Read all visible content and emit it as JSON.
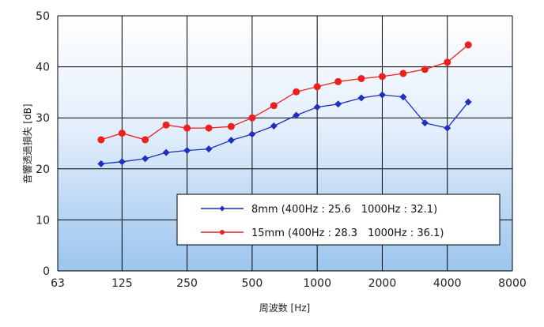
{
  "chart_data": {
    "type": "line",
    "xlabel": "周波数 [Hz]",
    "ylabel": "音響透過損失 [dB]",
    "x_scale": "log",
    "x_ticks": [
      "63",
      "125",
      "250",
      "500",
      "1000",
      "2000",
      "4000",
      "8000"
    ],
    "x_tick_values": [
      63,
      125,
      250,
      500,
      1000,
      2000,
      4000,
      8000
    ],
    "y_ticks": [
      "0",
      "10",
      "20",
      "30",
      "40",
      "50"
    ],
    "ylim": [
      0,
      50
    ],
    "xlim": [
      63,
      8000
    ],
    "grid": true,
    "legend_position": "lower-right",
    "x": [
      100,
      125,
      160,
      200,
      250,
      315,
      400,
      500,
      630,
      800,
      1000,
      1250,
      1600,
      2000,
      2500,
      3150,
      4000,
      5000
    ],
    "series": [
      {
        "name": "8mm (400Hz : 25.6　1000Hz : 32.1)",
        "color": "#1f2fbf",
        "marker": "diamond",
        "values": [
          21.0,
          21.4,
          22.0,
          23.2,
          23.6,
          23.9,
          25.6,
          26.8,
          28.4,
          30.5,
          32.1,
          32.7,
          33.9,
          34.5,
          34.1,
          29.0,
          28.0,
          33.1
        ]
      },
      {
        "name": "15mm (400Hz : 28.3　1000Hz : 36.1)",
        "color": "#ee1f1f",
        "marker": "circle",
        "values": [
          25.7,
          27.0,
          25.7,
          28.6,
          28.0,
          28.0,
          28.3,
          30.0,
          32.4,
          35.1,
          36.1,
          37.1,
          37.7,
          38.1,
          38.7,
          39.5,
          40.9,
          44.3
        ]
      }
    ]
  }
}
